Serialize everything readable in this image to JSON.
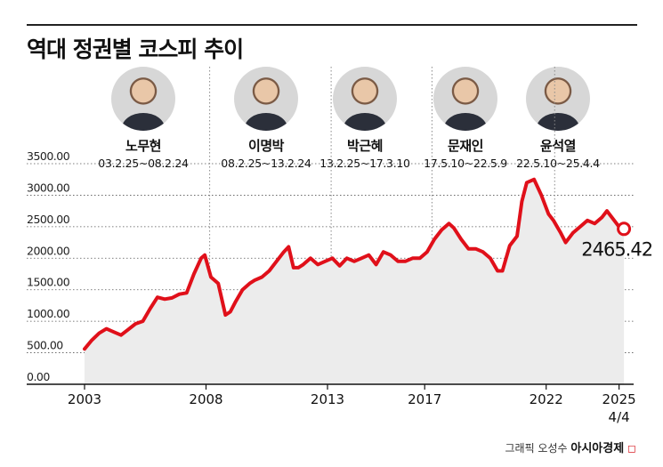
{
  "title": "역대 정권별 코스피 추이",
  "leaders": [
    {
      "name": "노무현",
      "term": "03.2.25~08.2.24"
    },
    {
      "name": "이명박",
      "term": "08.2.25~13.2.24"
    },
    {
      "name": "박근혜",
      "term": "13.2.25~17.3.10"
    },
    {
      "name": "문재인",
      "term": "17.5.10~22.5.9"
    },
    {
      "name": "윤석열",
      "term": "22.5.10~25.4.4"
    }
  ],
  "credit": {
    "label": "그래픽 오성수",
    "brand": "아시아경제",
    "mark": "◻"
  },
  "colors": {
    "line": "#e0101a",
    "area": "#ececec",
    "grid": "#555555",
    "divider": "#8a8a8a"
  },
  "chart_data": {
    "type": "area",
    "title": "역대 정권별 코스피 추이",
    "xlabel": "",
    "ylabel": "",
    "ylim": [
      0,
      3500
    ],
    "yticks": [
      "0.00",
      "500.00",
      "1000.00",
      "1500.00",
      "2000.00",
      "2500.00",
      "3000.00",
      "3500.00"
    ],
    "xticks": [
      {
        "label": "2003",
        "x": 2003.0
      },
      {
        "label": "2008",
        "x": 2008.0
      },
      {
        "label": "2013",
        "x": 2013.0
      },
      {
        "label": "2017",
        "x": 2017.0
      },
      {
        "label": "2022",
        "x": 2022.0
      },
      {
        "label": "2025",
        "x": 2025.0
      }
    ],
    "xtick_sublabel": {
      "label": "4/4",
      "x": 2025.0
    },
    "xlim": [
      2003.0,
      2025.6
    ],
    "grid": true,
    "dividers": [
      2008.15,
      2013.15,
      2017.3,
      2022.35
    ],
    "last_label": "2465.42",
    "series": [
      {
        "x": [
          2003.0,
          2003.3,
          2003.6,
          2003.9,
          2004.2,
          2004.5,
          2004.8,
          2005.1,
          2005.4,
          2005.7,
          2006.0,
          2006.3,
          2006.6,
          2006.9,
          2007.2,
          2007.5,
          2007.8,
          2007.95,
          2008.2,
          2008.5,
          2008.8,
          2009.0,
          2009.2,
          2009.5,
          2009.8,
          2010.0,
          2010.3,
          2010.6,
          2010.9,
          2011.2,
          2011.4,
          2011.6,
          2011.8,
          2012.0,
          2012.3,
          2012.6,
          2012.9,
          2013.2,
          2013.5,
          2013.8,
          2014.1,
          2014.4,
          2014.7,
          2015.0,
          2015.3,
          2015.6,
          2015.9,
          2016.2,
          2016.5,
          2016.8,
          2017.1,
          2017.4,
          2017.7,
          2018.0,
          2018.2,
          2018.5,
          2018.8,
          2019.1,
          2019.4,
          2019.7,
          2020.0,
          2020.2,
          2020.5,
          2020.8,
          2021.0,
          2021.2,
          2021.5,
          2021.8,
          2022.1,
          2022.3,
          2022.6,
          2022.8,
          2023.1,
          2023.4,
          2023.7,
          2024.0,
          2024.3,
          2024.5,
          2024.8,
          2025.0,
          2025.2
        ],
        "y": [
          560,
          700,
          810,
          880,
          830,
          780,
          870,
          960,
          1000,
          1200,
          1380,
          1350,
          1370,
          1430,
          1450,
          1750,
          2000,
          2050,
          1700,
          1600,
          1100,
          1150,
          1300,
          1500,
          1600,
          1650,
          1700,
          1800,
          1950,
          2100,
          2180,
          1850,
          1850,
          1900,
          2000,
          1900,
          1950,
          2000,
          1880,
          2000,
          1950,
          2000,
          2050,
          1900,
          2100,
          2050,
          1950,
          1950,
          2000,
          2000,
          2100,
          2300,
          2450,
          2550,
          2480,
          2300,
          2150,
          2150,
          2100,
          2000,
          1800,
          1800,
          2200,
          2350,
          2900,
          3200,
          3250,
          3000,
          2700,
          2600,
          2400,
          2250,
          2400,
          2500,
          2600,
          2550,
          2650,
          2750,
          2600,
          2500,
          2465.42
        ]
      }
    ]
  }
}
